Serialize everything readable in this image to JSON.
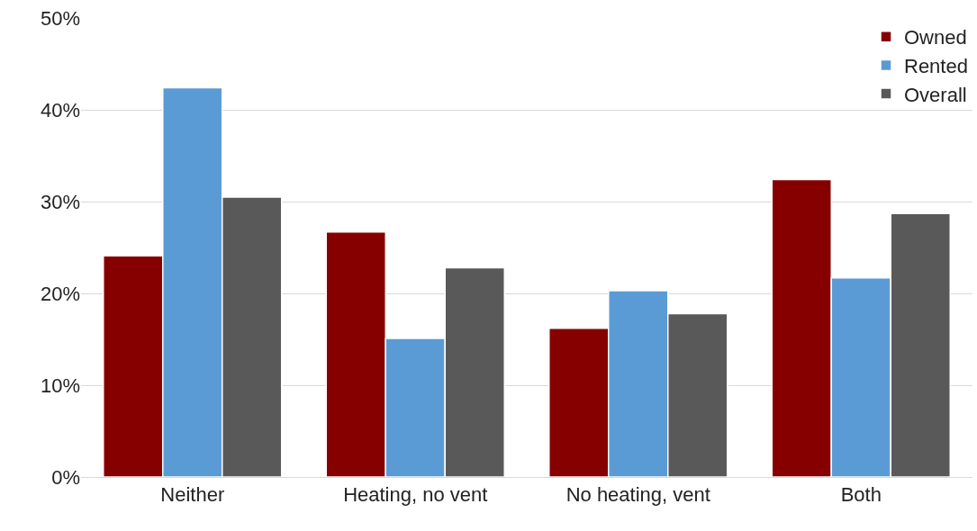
{
  "chart_data": {
    "type": "bar",
    "categories": [
      "Neither",
      "Heating, no vent",
      "No heating, vent",
      "Both"
    ],
    "series": [
      {
        "name": "Owned",
        "color": "#860000",
        "values": [
          24.1,
          26.7,
          16.2,
          32.4
        ]
      },
      {
        "name": "Rented",
        "color": "#5b9bd5",
        "values": [
          42.4,
          15.1,
          20.3,
          21.7
        ]
      },
      {
        "name": "Overall",
        "color": "#595959",
        "values": [
          30.5,
          22.8,
          17.8,
          28.7
        ]
      }
    ],
    "ylim": [
      0,
      50
    ],
    "yticks": [
      {
        "value": 0,
        "label": "0%"
      },
      {
        "value": 10,
        "label": "10%"
      },
      {
        "value": 20,
        "label": "20%"
      },
      {
        "value": 30,
        "label": "30%"
      },
      {
        "value": 40,
        "label": "40%"
      },
      {
        "value": 50,
        "label": "50%"
      }
    ],
    "grid": "y",
    "legend": "top right"
  }
}
